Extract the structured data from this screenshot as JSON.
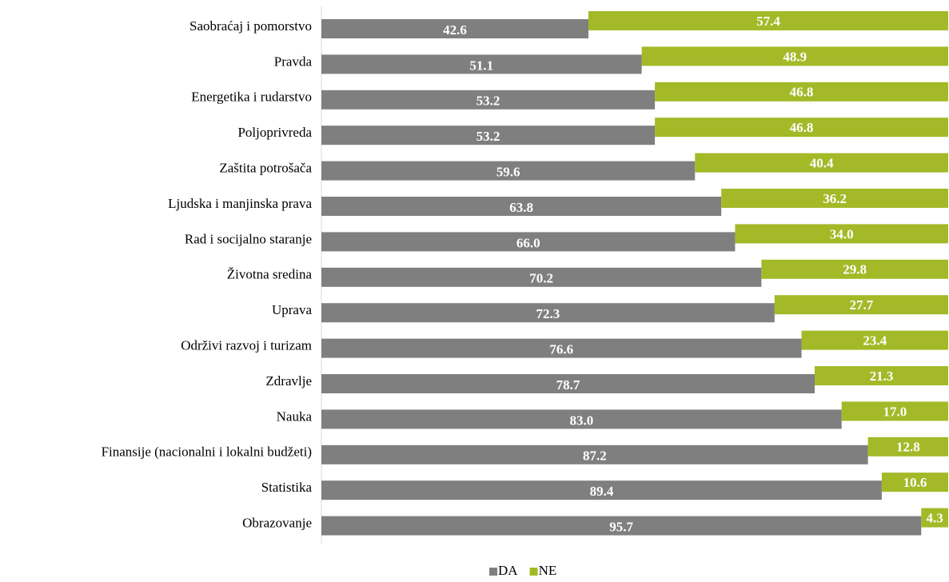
{
  "chart_data": {
    "type": "stacked-bar-horizontal",
    "categories": [
      "Saobraćaj i pomorstvo",
      "Pravda",
      "Energetika i rudarstvo",
      "Poljoprivreda",
      "Zaštita potrošača",
      "Ljudska i manjinska prava",
      "Rad i socijalno staranje",
      "Životna sredina",
      "Uprava",
      "Održivi razvoj i turizam",
      "Zdravlje",
      "Nauka",
      "Finansije (nacionalni i lokalni budžeti)",
      "Statistika",
      "Obrazovanje"
    ],
    "series": [
      {
        "name": "DA",
        "color": "#7f7f7f",
        "values": [
          42.6,
          51.1,
          53.2,
          53.2,
          59.6,
          63.8,
          66,
          70.2,
          72.3,
          76.6,
          78.7,
          83,
          87.2,
          89.4,
          95.7
        ],
        "value_labels": [
          "42.6",
          "51.1",
          "53.2",
          "53.2",
          "59.6",
          "63.8",
          "66.0",
          "70.2",
          "72.3",
          "76.6",
          "78.7",
          "83.0",
          "87.2",
          "89.4",
          "95.7"
        ]
      },
      {
        "name": "NE",
        "color": "#a3b927",
        "values": [
          57.4,
          48.9,
          46.8,
          46.8,
          40.4,
          36.2,
          34,
          29.8,
          27.7,
          23.4,
          21.3,
          17,
          12.8,
          10.6,
          4.3
        ],
        "value_labels": [
          "57.4",
          "48.9",
          "46.8",
          "46.8",
          "40.4",
          "36.2",
          "34.0",
          "29.8",
          "27.7",
          "23.4",
          "21.3",
          "17.0",
          "12.8",
          "10.6",
          "4.3"
        ]
      }
    ],
    "xlim": [
      0,
      100
    ],
    "legend": "bottom"
  }
}
